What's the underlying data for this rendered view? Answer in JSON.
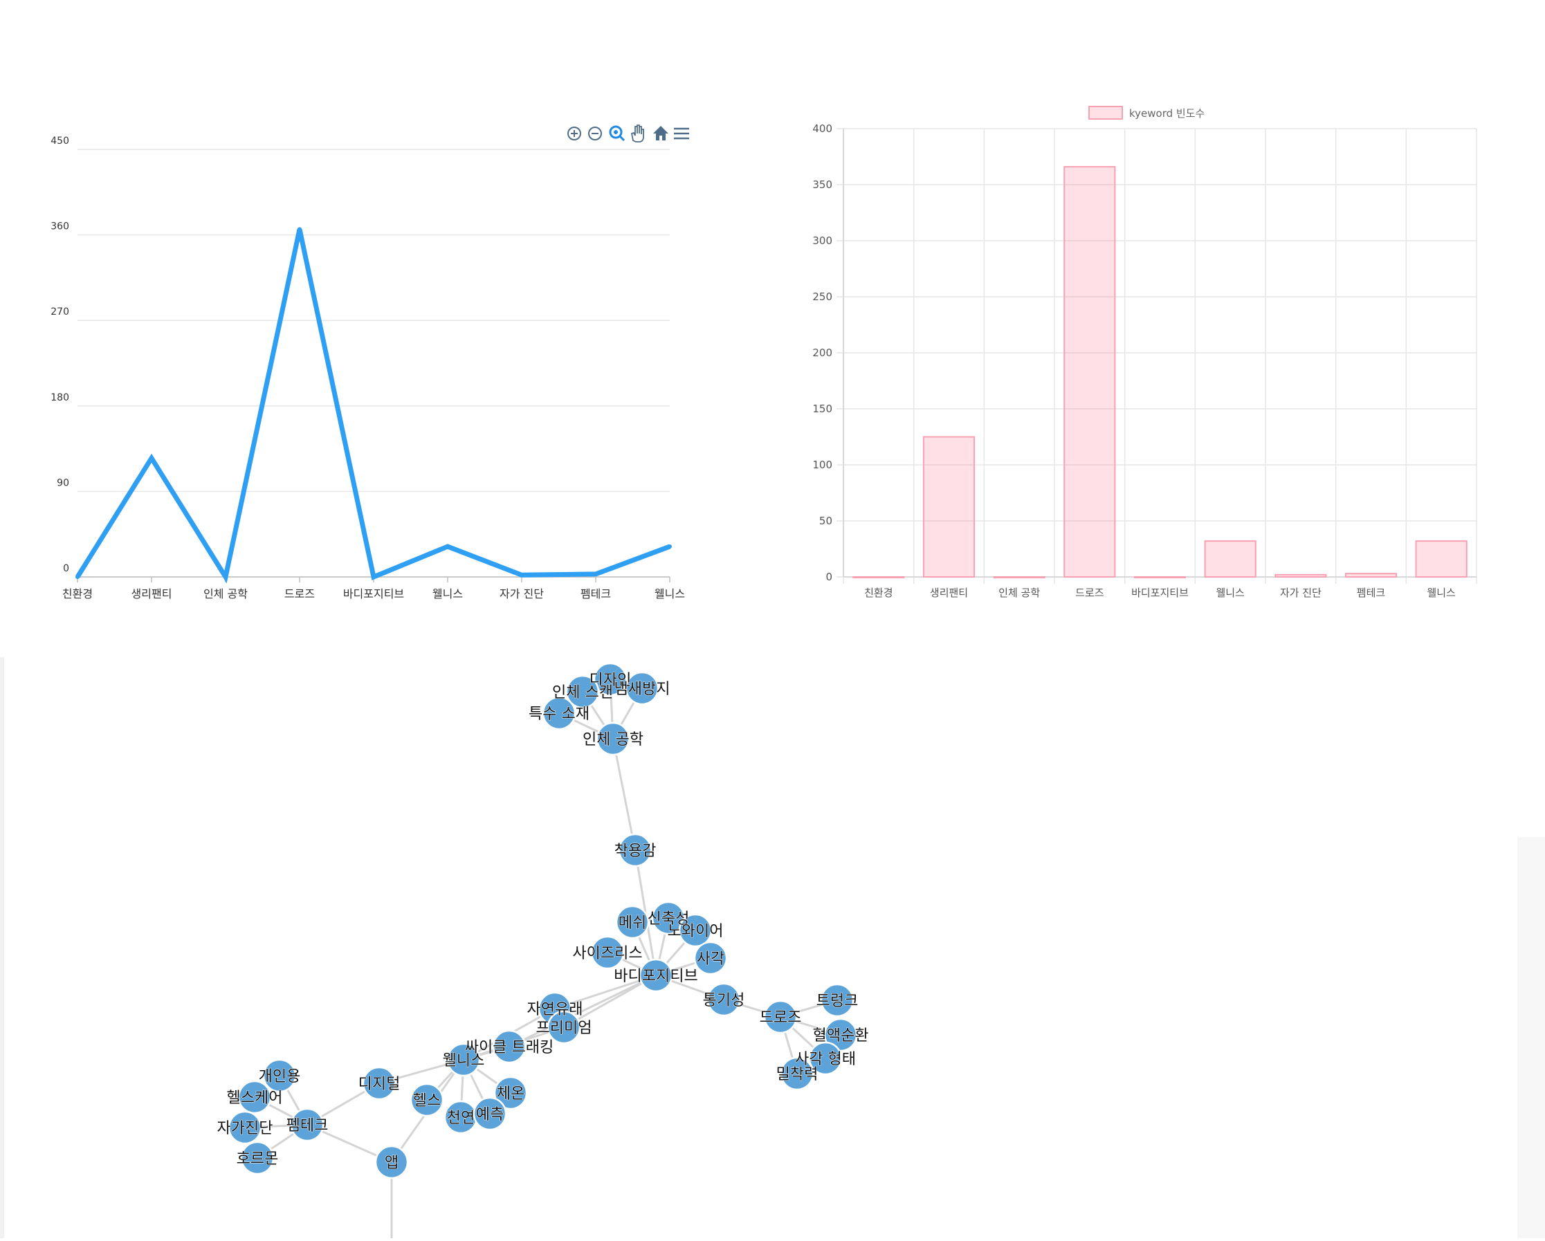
{
  "colors": {
    "line": "#2e9ff2",
    "bar_fill": "rgba(255,99,132,0.2)",
    "bar_stroke": "#f7a1b3",
    "node": "#5ba3d9",
    "edge": "#d4d4d4",
    "toolbar": "#4f6d8a"
  },
  "toolbar": {
    "icons": [
      "zoom-in-icon",
      "zoom-out-icon",
      "zoom-selection-icon",
      "pan-hand-icon",
      "home-reset-icon",
      "menu-icon"
    ]
  },
  "chart_data": [
    {
      "type": "line",
      "categories": [
        "친환경",
        "생리팬티",
        "인체 공학",
        "드로즈",
        "바디포지티브",
        "웰니스",
        "자가 진단",
        "펨테크",
        "웰니스"
      ],
      "values": [
        0,
        125,
        0,
        366,
        0,
        32,
        2,
        3,
        32
      ],
      "yticks": [
        0,
        90,
        180,
        270,
        360,
        450
      ],
      "ylim": [
        0,
        450
      ],
      "grid": true
    },
    {
      "type": "bar",
      "categories": [
        "친환경",
        "생리팬티",
        "인체 공학",
        "드로즈",
        "바디포지티브",
        "웰니스",
        "자가 진단",
        "펨테크",
        "웰니스"
      ],
      "series": [
        {
          "name": "kyeword 빈도수",
          "values": [
            0,
            125,
            0,
            366,
            0,
            32,
            2,
            3,
            32
          ]
        }
      ],
      "yticks": [
        0,
        50,
        100,
        150,
        200,
        250,
        300,
        350,
        400
      ],
      "ylim": [
        0,
        400
      ],
      "legend": "top",
      "grid": true
    }
  ],
  "network": {
    "nodes": [
      {
        "id": "디자인"
      },
      {
        "id": "인체 스캔"
      },
      {
        "id": "냄새방지"
      },
      {
        "id": "특수 소재"
      },
      {
        "id": "인체 공학"
      },
      {
        "id": "착용감"
      },
      {
        "id": "메쉬"
      },
      {
        "id": "신축성"
      },
      {
        "id": "노와이어"
      },
      {
        "id": "사각"
      },
      {
        "id": "사이즈리스"
      },
      {
        "id": "바디포지티브"
      },
      {
        "id": "통기성"
      },
      {
        "id": "자연유래"
      },
      {
        "id": "프리미엄"
      },
      {
        "id": "싸이클 트래킹"
      },
      {
        "id": "웰니스"
      },
      {
        "id": "디지털"
      },
      {
        "id": "헬스"
      },
      {
        "id": "체온"
      },
      {
        "id": "천연"
      },
      {
        "id": "예측"
      },
      {
        "id": "앱"
      },
      {
        "id": "개인용"
      },
      {
        "id": "헬스케어"
      },
      {
        "id": "펨테크"
      },
      {
        "id": "자가진단"
      },
      {
        "id": "호르몬"
      },
      {
        "id": "드로즈"
      },
      {
        "id": "트렁크"
      },
      {
        "id": "혈액순환"
      },
      {
        "id": "사각 형태"
      },
      {
        "id": "밀착력"
      }
    ],
    "edges": [
      [
        "디자인",
        "인체 공학"
      ],
      [
        "인체 스캔",
        "인체 공학"
      ],
      [
        "냄새방지",
        "인체 공학"
      ],
      [
        "특수 소재",
        "인체 공학"
      ],
      [
        "디자인",
        "인체 스캔"
      ],
      [
        "디자인",
        "냄새방지"
      ],
      [
        "인체 스캔",
        "특수 소재"
      ],
      [
        "인체 공학",
        "착용감"
      ],
      [
        "착용감",
        "바디포지티브"
      ],
      [
        "메쉬",
        "바디포지티브"
      ],
      [
        "신축성",
        "바디포지티브"
      ],
      [
        "노와이어",
        "바디포지티브"
      ],
      [
        "사각",
        "바디포지티브"
      ],
      [
        "사이즈리스",
        "바디포지티브"
      ],
      [
        "메쉬",
        "신축성"
      ],
      [
        "바디포지티브",
        "통기성"
      ],
      [
        "바디포지티브",
        "자연유래"
      ],
      [
        "바디포지티브",
        "프리미엄"
      ],
      [
        "바디포지티브",
        "싸이클 트래킹"
      ],
      [
        "통기성",
        "드로즈"
      ],
      [
        "드로즈",
        "트렁크"
      ],
      [
        "드로즈",
        "혈액순환"
      ],
      [
        "드로즈",
        "사각 형태"
      ],
      [
        "드로즈",
        "밀착력"
      ],
      [
        "자연유래",
        "웰니스"
      ],
      [
        "프리미엄",
        "웰니스"
      ],
      [
        "싸이클 트래킹",
        "웰니스"
      ],
      [
        "웰니스",
        "디지털"
      ],
      [
        "웰니스",
        "헬스"
      ],
      [
        "웰니스",
        "체온"
      ],
      [
        "웰니스",
        "천연"
      ],
      [
        "웰니스",
        "예측"
      ],
      [
        "웰니스",
        "앱"
      ],
      [
        "디지털",
        "펨테크"
      ],
      [
        "앱",
        "펨테크"
      ],
      [
        "펨테크",
        "개인용"
      ],
      [
        "펨테크",
        "헬스케어"
      ],
      [
        "펨테크",
        "자가진단"
      ],
      [
        "펨테크",
        "호르몬"
      ],
      [
        "개인용",
        "헬스케어"
      ],
      [
        "헬스케어",
        "자가진단"
      ]
    ]
  }
}
